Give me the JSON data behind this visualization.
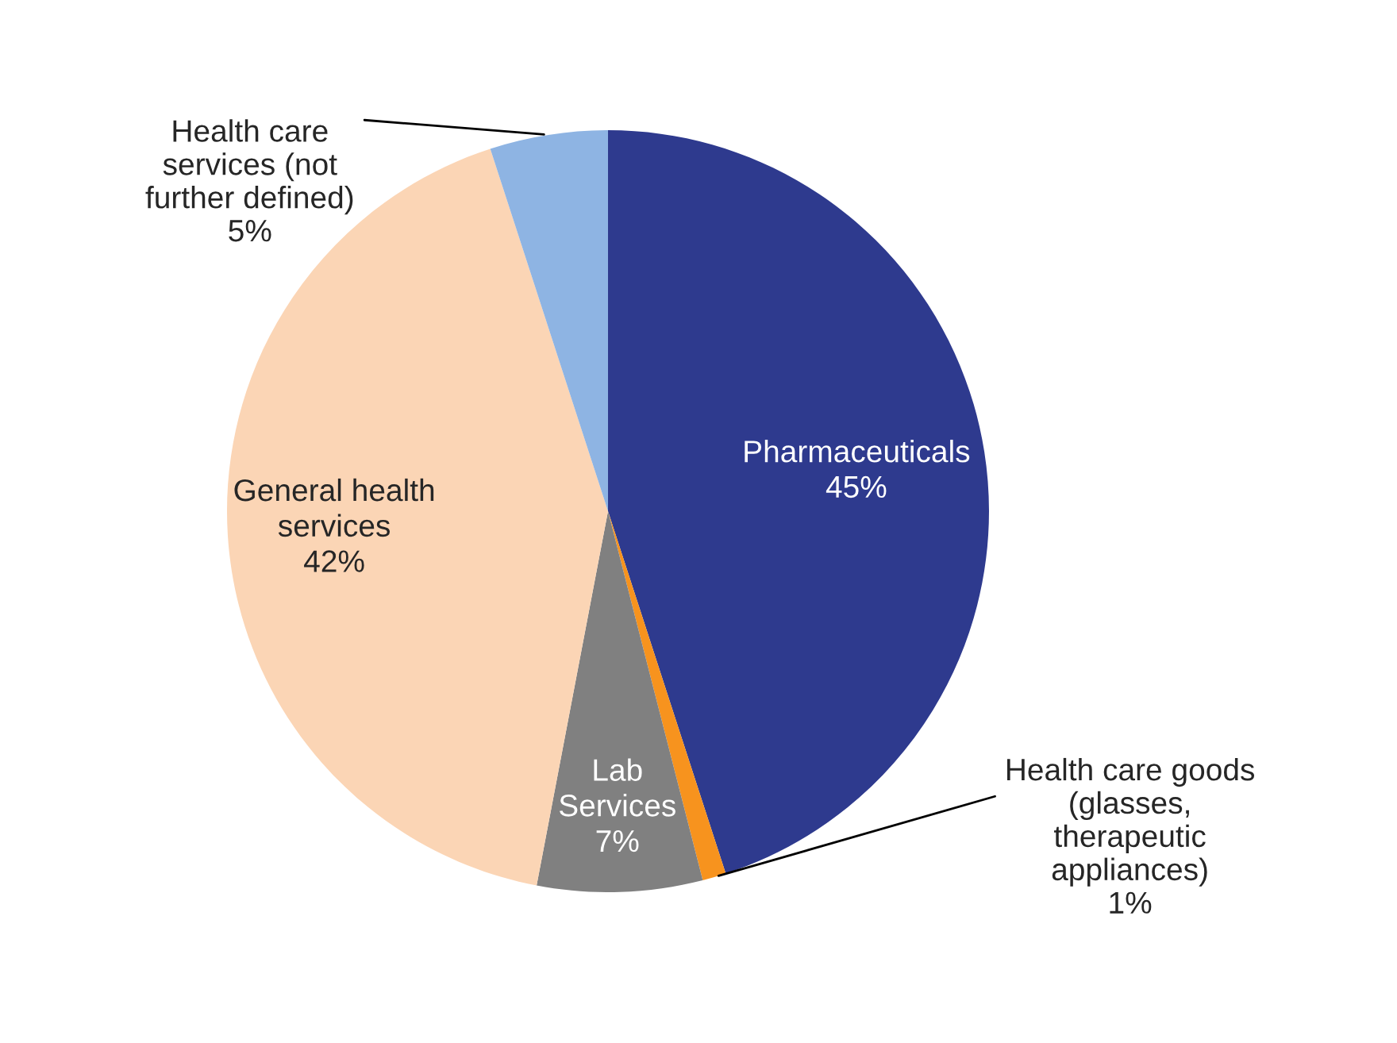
{
  "chart_data": {
    "type": "pie",
    "categories": [
      "Pharmaceuticals",
      "Health care goods (glasses, therapeutic appliances)",
      "Lab Services",
      "General health services",
      "Health care services (not further defined)"
    ],
    "values": [
      45,
      1,
      7,
      42,
      5
    ],
    "value_labels": [
      "45%",
      "1%",
      "7%",
      "42%",
      "5%"
    ],
    "colors": [
      "#2e3a8e",
      "#f7931e",
      "#808080",
      "#fbd5b5",
      "#8eb4e3"
    ],
    "legend": false
  }
}
